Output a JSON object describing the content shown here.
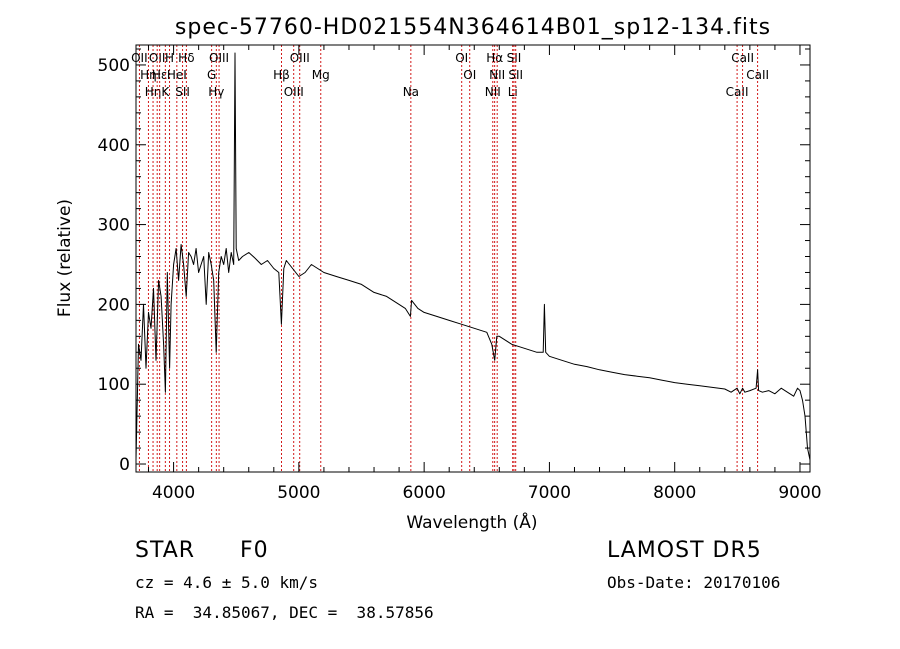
{
  "chart_data": {
    "type": "line",
    "title": "spec-57760-HD021554N364614B01_sp12-134.fits",
    "xlabel": "Wavelength (Å)",
    "ylabel": "Flux (relative)",
    "xlim": [
      3700,
      9080
    ],
    "ylim": [
      -10,
      525
    ],
    "xticks": [
      4000,
      5000,
      6000,
      7000,
      8000,
      9000
    ],
    "yticks": [
      0,
      100,
      200,
      300,
      400,
      500
    ],
    "grid": false,
    "line_color": "#000000",
    "marker_color": "#cc0000",
    "series": [
      {
        "x": [
          3700,
          3720,
          3740,
          3760,
          3780,
          3800,
          3820,
          3840,
          3860,
          3880,
          3900,
          3920,
          3935,
          3950,
          3968,
          3980,
          4000,
          4020,
          4040,
          4060,
          4080,
          4101,
          4120,
          4140,
          4160,
          4180,
          4200,
          4220,
          4240,
          4260,
          4280,
          4300,
          4320,
          4340,
          4360,
          4380,
          4400,
          4420,
          4440,
          4460,
          4480,
          4490,
          4500,
          4520,
          4550,
          4600,
          4650,
          4700,
          4750,
          4800,
          4840,
          4861,
          4880,
          4900,
          4950,
          5000,
          5050,
          5100,
          5150,
          5200,
          5300,
          5400,
          5500,
          5600,
          5700,
          5800,
          5850,
          5890,
          5900,
          5950,
          6000,
          6100,
          6200,
          6300,
          6400,
          6500,
          6540,
          6563,
          6580,
          6600,
          6700,
          6800,
          6900,
          6950,
          6960,
          6970,
          7000,
          7100,
          7200,
          7300,
          7400,
          7500,
          7600,
          7700,
          7800,
          7900,
          8000,
          8100,
          8200,
          8300,
          8400,
          8450,
          8498,
          8520,
          8542,
          8560,
          8600,
          8650,
          8662,
          8670,
          8700,
          8750,
          8800,
          8850,
          8900,
          8950,
          8980,
          9000,
          9020,
          9040,
          9060,
          9080
        ],
        "y": [
          5,
          150,
          130,
          200,
          120,
          190,
          170,
          220,
          130,
          230,
          210,
          150,
          90,
          240,
          120,
          200,
          250,
          270,
          230,
          275,
          250,
          210,
          265,
          260,
          250,
          270,
          240,
          250,
          260,
          200,
          265,
          250,
          230,
          140,
          240,
          260,
          250,
          270,
          240,
          265,
          250,
          515,
          270,
          255,
          260,
          265,
          258,
          250,
          255,
          245,
          240,
          175,
          245,
          255,
          245,
          235,
          240,
          250,
          245,
          240,
          235,
          230,
          225,
          215,
          210,
          200,
          195,
          185,
          205,
          195,
          190,
          185,
          180,
          175,
          170,
          165,
          150,
          130,
          160,
          160,
          150,
          145,
          140,
          140,
          200,
          140,
          135,
          130,
          125,
          122,
          118,
          115,
          112,
          110,
          108,
          105,
          102,
          100,
          98,
          96,
          94,
          90,
          95,
          88,
          95,
          90,
          92,
          95,
          118,
          92,
          90,
          92,
          88,
          95,
          90,
          85,
          95,
          92,
          80,
          60,
          20,
          5
        ]
      }
    ],
    "line_markers": [
      {
        "x": 3727,
        "labels": [
          "OII"
        ]
      },
      {
        "x": 3799,
        "labels": [
          "Hη"
        ]
      },
      {
        "x": 3836,
        "labels": [
          "Hη"
        ]
      },
      {
        "x": 3869,
        "labels": [
          "OII"
        ]
      },
      {
        "x": 3889,
        "labels": [
          "Hε"
        ]
      },
      {
        "x": 3934,
        "labels": [
          "K"
        ]
      },
      {
        "x": 3968,
        "labels": [
          "H"
        ]
      },
      {
        "x": 4026,
        "labels": [
          "HeI"
        ]
      },
      {
        "x": 4072,
        "labels": [
          "SII"
        ]
      },
      {
        "x": 4102,
        "labels": [
          "Hδ"
        ]
      },
      {
        "x": 4304,
        "labels": [
          "G"
        ]
      },
      {
        "x": 4341,
        "labels": [
          "Hγ"
        ]
      },
      {
        "x": 4363,
        "labels": [
          "OIII"
        ]
      },
      {
        "x": 4861,
        "labels": [
          "Hβ"
        ]
      },
      {
        "x": 4959,
        "labels": [
          "OIII"
        ]
      },
      {
        "x": 5007,
        "labels": [
          "OIII"
        ]
      },
      {
        "x": 5175,
        "labels": [
          "Mg"
        ]
      },
      {
        "x": 5894,
        "labels": [
          "Na"
        ]
      },
      {
        "x": 6300,
        "labels": [
          "OI"
        ]
      },
      {
        "x": 6364,
        "labels": [
          "OI"
        ]
      },
      {
        "x": 6548,
        "labels": [
          "NII"
        ]
      },
      {
        "x": 6563,
        "labels": [
          "Hα"
        ]
      },
      {
        "x": 6583,
        "labels": [
          "NII"
        ]
      },
      {
        "x": 6707,
        "labels": [
          "Li"
        ]
      },
      {
        "x": 6717,
        "labels": [
          "SII"
        ]
      },
      {
        "x": 6731,
        "labels": [
          "SII"
        ]
      },
      {
        "x": 8498,
        "labels": [
          "CaII"
        ]
      },
      {
        "x": 8542,
        "labels": [
          "CaII"
        ]
      },
      {
        "x": 8662,
        "labels": [
          "CaII"
        ]
      }
    ]
  },
  "info": {
    "class_label": "STAR",
    "subclass": "F0",
    "survey": "LAMOST DR5",
    "cz": "cz = 4.6 ± 5.0 km/s",
    "obs_date": "Obs-Date: 20170106",
    "coords": "RA =  34.85067, DEC =  38.57856"
  }
}
